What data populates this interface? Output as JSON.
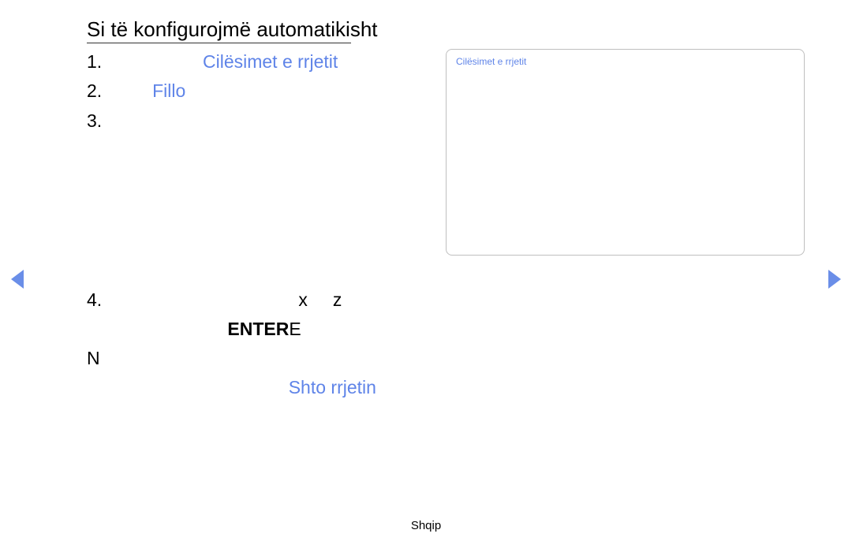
{
  "title": "Si të konfigurojmë automatikisht",
  "panel_title": "Cilësimet e rrjetit",
  "footer": "Shqip",
  "colors": {
    "link": "#5f84e8",
    "text": "#000000",
    "border": "#bfbfbf"
  },
  "glyph": "\u0001",
  "row1_prefix": "1.  ",
  "row1_link": "Cilësimet e rrjetit",
  "row2_prefix": "2. ",
  "row2_link": "Fillo",
  "row3_prefix": "3.  ",
  "row4_prefix": "4.  ",
  "row4_x": "x",
  "row4_z": "z",
  "row4_enter": "ENTER",
  "row4_E": "E",
  "row5_N": "N",
  "row5_link": "Shto rrjetin"
}
